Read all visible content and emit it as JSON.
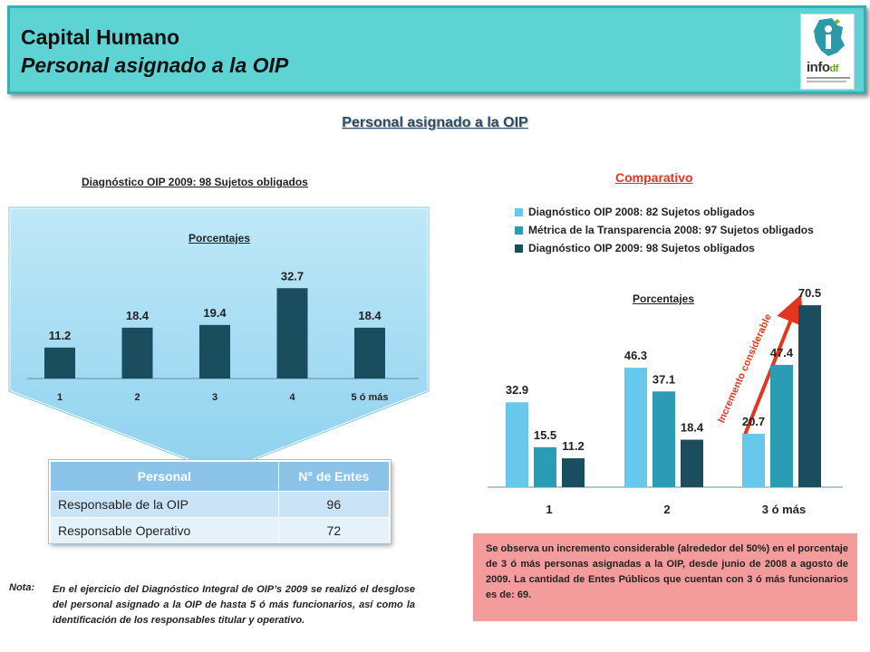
{
  "header": {
    "title": "Capital Humano",
    "subtitle": "Personal asignado a la OIP",
    "logo_text": "info",
    "logo_suffix": "df"
  },
  "main_title": "Personal asignado a la OIP",
  "left_section": {
    "title": "Diagnóstico OIP 2009: 98 Sujetos obligados",
    "chart_label": "Porcentajes"
  },
  "right_section": {
    "title": "Comparativo",
    "chart_label": "Porcentajes",
    "annotation": "Incremento considerable"
  },
  "colors": {
    "dark_teal": "#1a4e5e",
    "light_blue": "#67c8ec",
    "mid_teal": "#2a9cb4",
    "header_bg": "#5ed3d3",
    "accent_red": "#e2361e",
    "callout_fill": "#a8def4"
  },
  "chart_data": [
    {
      "type": "bar",
      "title": "Porcentajes",
      "categories": [
        "1",
        "2",
        "3",
        "4",
        "5 ó más"
      ],
      "series": [
        {
          "values": [
            11.2,
            18.4,
            19.4,
            32.7,
            18.4
          ]
        }
      ],
      "data_labels": [
        "11.2",
        "18.4",
        "19.4",
        "32.7",
        "18.4"
      ],
      "grid": false,
      "legend": "none"
    },
    {
      "type": "bar",
      "title": "Porcentajes",
      "categories": [
        "1",
        "2",
        "3 ó más"
      ],
      "series": [
        {
          "name": "Diagnóstico OIP 2008: 82 Sujetos obligados",
          "values": [
            32.9,
            46.3,
            20.7
          ],
          "labels": [
            "32.9",
            "46.3",
            "20.7"
          ]
        },
        {
          "name": "Métrica de la Transparencia 2008: 97 Sujetos obligados",
          "values": [
            15.5,
            37.1,
            47.4
          ],
          "labels": [
            "15.5",
            "37.1",
            "47.4"
          ]
        },
        {
          "name": "Diagnóstico OIP 2009: 98 Sujetos obligados",
          "values": [
            11.2,
            18.4,
            70.5
          ],
          "labels": [
            "11.2",
            "18.4",
            "70.5"
          ]
        }
      ],
      "grid": false,
      "legend": "top"
    }
  ],
  "table": {
    "headers": [
      "Personal",
      "N° de Entes"
    ],
    "rows": [
      {
        "personal": "Responsable de la OIP",
        "entes": "96"
      },
      {
        "personal": "Responsable Operativo",
        "entes": "72"
      }
    ]
  },
  "note": {
    "label": "Nota:",
    "text": "En el ejercicio del Diagnóstico Integral de OIP’s 2009 se realizó el desglose del personal asignado a la OIP de hasta 5 ó más funcionarios, así como la identificación de los responsables titular y operativo."
  },
  "observation": {
    "text": "Se observa un incremento considerable (alrededor del 50%) en el porcentaje de 3 ó más personas asignadas a la OIP, desde junio de 2008 a agosto de 2009. La cantidad de Entes Públicos que cuentan con 3 ó más funcionarios es de: 69."
  }
}
